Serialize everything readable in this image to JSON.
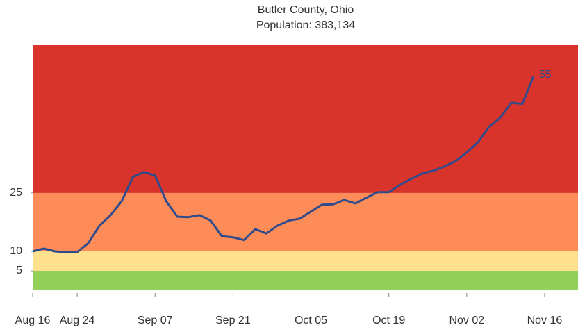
{
  "chart_data": {
    "type": "line",
    "title": "Butler County, Ohio",
    "subtitle": "Population: 383,134",
    "categories": [
      "Aug 16",
      null,
      null,
      null,
      "Aug 24",
      null,
      null,
      null,
      null,
      null,
      null,
      "Sep 07",
      null,
      null,
      null,
      null,
      null,
      null,
      "Sep 21",
      null,
      null,
      null,
      null,
      null,
      null,
      "Oct 05",
      null,
      null,
      null,
      null,
      null,
      null,
      "Oct 19",
      null,
      null,
      null,
      null,
      null,
      null,
      "Nov 02",
      null,
      null,
      null,
      null,
      null,
      null,
      "Nov 16",
      null,
      null,
      null
    ],
    "series": [
      {
        "color": "#2f4b8c",
        "values": [
          10,
          10.7,
          10,
          9.8,
          9.8,
          12.1,
          16.6,
          19.3,
          22.9,
          29.1,
          30.4,
          29.5,
          22.9,
          18.9,
          18.8,
          19.3,
          17.9,
          13.9,
          13.6,
          12.9,
          15.7,
          14.6,
          16.6,
          17.9,
          18.4,
          20.2,
          22,
          22.1,
          23.2,
          22.3,
          23.8,
          25.2,
          25.2,
          27.1,
          28.6,
          30,
          30.7,
          31.8,
          33.2,
          35.4,
          38,
          42,
          44.3,
          48.2,
          47.9,
          55,
          null,
          null,
          null,
          null
        ],
        "value_labels": [
          null,
          null,
          null,
          null,
          null,
          null,
          null,
          null,
          null,
          null,
          null,
          null,
          null,
          null,
          null,
          null,
          null,
          null,
          null,
          null,
          null,
          null,
          null,
          null,
          null,
          null,
          null,
          null,
          null,
          null,
          null,
          null,
          null,
          null,
          null,
          null,
          null,
          null,
          null,
          null,
          null,
          null,
          null,
          null,
          null,
          "55",
          null,
          null,
          null,
          null
        ]
      }
    ],
    "ylim": [
      0,
      63
    ],
    "yticks": [
      5,
      10,
      25
    ],
    "band_colors": [
      "#92d05a",
      "#ffe08c",
      "#fd8c58",
      "#d9342b"
    ]
  }
}
